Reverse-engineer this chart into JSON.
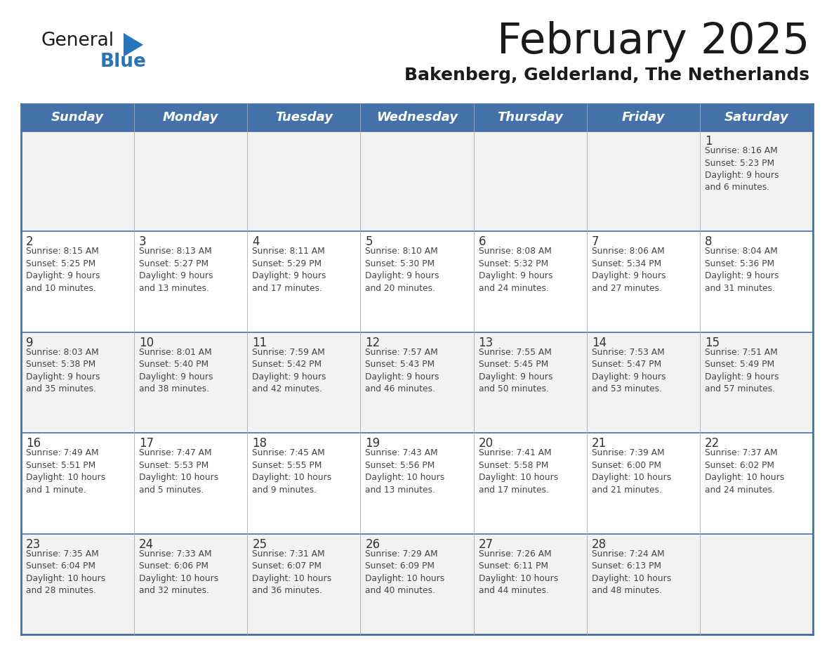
{
  "title": "February 2025",
  "subtitle": "Bakenberg, Gelderland, The Netherlands",
  "days_of_week": [
    "Sunday",
    "Monday",
    "Tuesday",
    "Wednesday",
    "Thursday",
    "Friday",
    "Saturday"
  ],
  "header_bg": "#4472A8",
  "header_text": "#FFFFFF",
  "row_bg_even": "#F2F2F2",
  "row_bg_odd": "#FFFFFF",
  "cell_text_color": "#444444",
  "day_num_color": "#333333",
  "border_color": "#4472A8",
  "grid_line_color": "#4472A8",
  "title_color": "#1a1a1a",
  "subtitle_color": "#1a1a1a",
  "logo_general_color": "#1a1a1a",
  "logo_blue_color": "#2874B8",
  "logo_triangle_color": "#2874B8",
  "calendar_data": [
    [
      {
        "day": "",
        "info": ""
      },
      {
        "day": "",
        "info": ""
      },
      {
        "day": "",
        "info": ""
      },
      {
        "day": "",
        "info": ""
      },
      {
        "day": "",
        "info": ""
      },
      {
        "day": "",
        "info": ""
      },
      {
        "day": "1",
        "info": "Sunrise: 8:16 AM\nSunset: 5:23 PM\nDaylight: 9 hours\nand 6 minutes."
      }
    ],
    [
      {
        "day": "2",
        "info": "Sunrise: 8:15 AM\nSunset: 5:25 PM\nDaylight: 9 hours\nand 10 minutes."
      },
      {
        "day": "3",
        "info": "Sunrise: 8:13 AM\nSunset: 5:27 PM\nDaylight: 9 hours\nand 13 minutes."
      },
      {
        "day": "4",
        "info": "Sunrise: 8:11 AM\nSunset: 5:29 PM\nDaylight: 9 hours\nand 17 minutes."
      },
      {
        "day": "5",
        "info": "Sunrise: 8:10 AM\nSunset: 5:30 PM\nDaylight: 9 hours\nand 20 minutes."
      },
      {
        "day": "6",
        "info": "Sunrise: 8:08 AM\nSunset: 5:32 PM\nDaylight: 9 hours\nand 24 minutes."
      },
      {
        "day": "7",
        "info": "Sunrise: 8:06 AM\nSunset: 5:34 PM\nDaylight: 9 hours\nand 27 minutes."
      },
      {
        "day": "8",
        "info": "Sunrise: 8:04 AM\nSunset: 5:36 PM\nDaylight: 9 hours\nand 31 minutes."
      }
    ],
    [
      {
        "day": "9",
        "info": "Sunrise: 8:03 AM\nSunset: 5:38 PM\nDaylight: 9 hours\nand 35 minutes."
      },
      {
        "day": "10",
        "info": "Sunrise: 8:01 AM\nSunset: 5:40 PM\nDaylight: 9 hours\nand 38 minutes."
      },
      {
        "day": "11",
        "info": "Sunrise: 7:59 AM\nSunset: 5:42 PM\nDaylight: 9 hours\nand 42 minutes."
      },
      {
        "day": "12",
        "info": "Sunrise: 7:57 AM\nSunset: 5:43 PM\nDaylight: 9 hours\nand 46 minutes."
      },
      {
        "day": "13",
        "info": "Sunrise: 7:55 AM\nSunset: 5:45 PM\nDaylight: 9 hours\nand 50 minutes."
      },
      {
        "day": "14",
        "info": "Sunrise: 7:53 AM\nSunset: 5:47 PM\nDaylight: 9 hours\nand 53 minutes."
      },
      {
        "day": "15",
        "info": "Sunrise: 7:51 AM\nSunset: 5:49 PM\nDaylight: 9 hours\nand 57 minutes."
      }
    ],
    [
      {
        "day": "16",
        "info": "Sunrise: 7:49 AM\nSunset: 5:51 PM\nDaylight: 10 hours\nand 1 minute."
      },
      {
        "day": "17",
        "info": "Sunrise: 7:47 AM\nSunset: 5:53 PM\nDaylight: 10 hours\nand 5 minutes."
      },
      {
        "day": "18",
        "info": "Sunrise: 7:45 AM\nSunset: 5:55 PM\nDaylight: 10 hours\nand 9 minutes."
      },
      {
        "day": "19",
        "info": "Sunrise: 7:43 AM\nSunset: 5:56 PM\nDaylight: 10 hours\nand 13 minutes."
      },
      {
        "day": "20",
        "info": "Sunrise: 7:41 AM\nSunset: 5:58 PM\nDaylight: 10 hours\nand 17 minutes."
      },
      {
        "day": "21",
        "info": "Sunrise: 7:39 AM\nSunset: 6:00 PM\nDaylight: 10 hours\nand 21 minutes."
      },
      {
        "day": "22",
        "info": "Sunrise: 7:37 AM\nSunset: 6:02 PM\nDaylight: 10 hours\nand 24 minutes."
      }
    ],
    [
      {
        "day": "23",
        "info": "Sunrise: 7:35 AM\nSunset: 6:04 PM\nDaylight: 10 hours\nand 28 minutes."
      },
      {
        "day": "24",
        "info": "Sunrise: 7:33 AM\nSunset: 6:06 PM\nDaylight: 10 hours\nand 32 minutes."
      },
      {
        "day": "25",
        "info": "Sunrise: 7:31 AM\nSunset: 6:07 PM\nDaylight: 10 hours\nand 36 minutes."
      },
      {
        "day": "26",
        "info": "Sunrise: 7:29 AM\nSunset: 6:09 PM\nDaylight: 10 hours\nand 40 minutes."
      },
      {
        "day": "27",
        "info": "Sunrise: 7:26 AM\nSunset: 6:11 PM\nDaylight: 10 hours\nand 44 minutes."
      },
      {
        "day": "28",
        "info": "Sunrise: 7:24 AM\nSunset: 6:13 PM\nDaylight: 10 hours\nand 48 minutes."
      },
      {
        "day": "",
        "info": ""
      }
    ]
  ]
}
